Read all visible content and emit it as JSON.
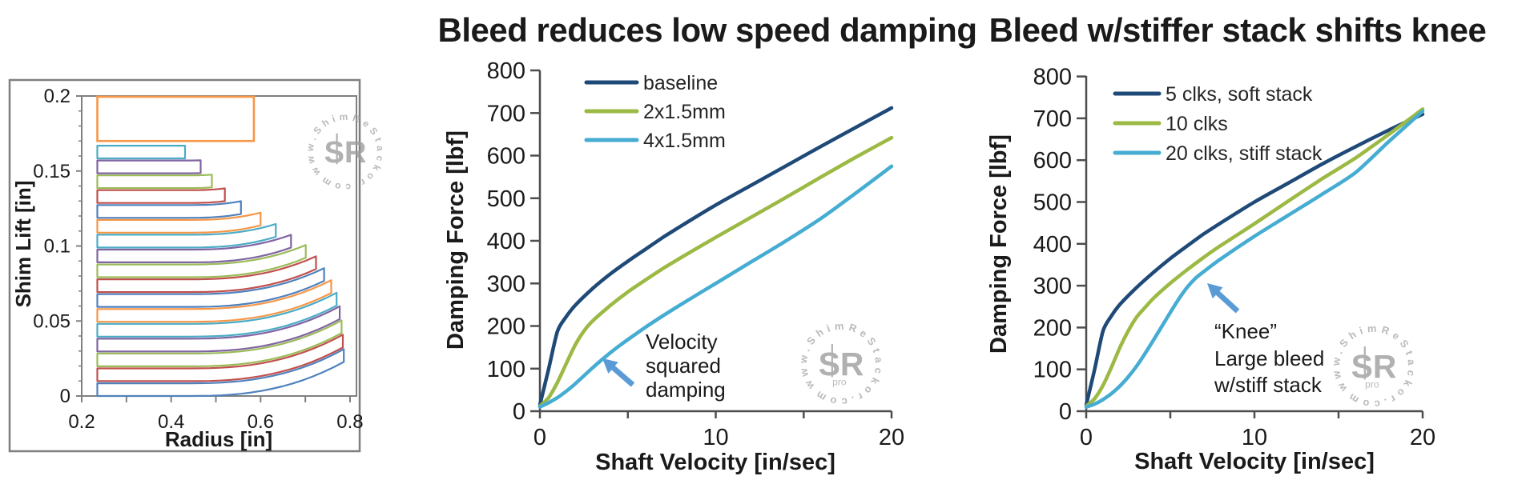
{
  "page": {
    "background": "#ffffff"
  },
  "colors": {
    "axis_dark": "#4d4d4d",
    "axis_gray": "#808080",
    "frame_gray": "#7f7f7f",
    "text": "#1a1a1a",
    "arrow_blue": "#5b9bd5",
    "watermark_gray": "#a9a9a9"
  },
  "watermark": {
    "circle_text": "www.ShimReStackor.com",
    "monogram": "SR",
    "sub_label": "pro"
  },
  "chart_data": [
    {
      "id": "shim-stack-profile",
      "type": "line",
      "subtype": "shim-stack-cross-section",
      "title": "",
      "xlabel": "Radius [in]",
      "ylabel": "Shim Lift [in]",
      "xlim": [
        0.2,
        0.814
      ],
      "ylim": [
        0,
        0.2
      ],
      "xticks": [
        0.2,
        0.3,
        0.4,
        0.5,
        0.6,
        0.7,
        0.8
      ],
      "xtick_labels": [
        "0.2",
        "",
        "0.4",
        "",
        "0.6",
        "",
        "0.8"
      ],
      "ytick_labels": [
        "0",
        "0.05",
        "0.1",
        "0.15",
        "0.2"
      ],
      "yticks": [
        0,
        0.05,
        0.1,
        0.15,
        0.2
      ],
      "ytick_minor_step": 0.01,
      "grid": false,
      "shims": {
        "clamp_inner_radius": 0.235,
        "thickness": 0.0085,
        "lift_step": 0.0099,
        "bend_start_radius": 0.44,
        "deflection_coeff": 0.19,
        "deflection_power": 2.5,
        "outer_radii": [
          0.786,
          0.784,
          0.781,
          0.777,
          0.77,
          0.758,
          0.742,
          0.724,
          0.701,
          0.668,
          0.634,
          0.6,
          0.556,
          0.52,
          0.491,
          0.466,
          0.431
        ],
        "color_cycle": [
          "#4f81bd",
          "#c0504d",
          "#9bbb59",
          "#8064a2",
          "#4bacc6",
          "#f79646"
        ]
      },
      "clamp_plate": {
        "x0": 0.235,
        "x1": 0.585,
        "y0": 0.17,
        "y1": 0.1995,
        "color": "#f79646"
      }
    },
    {
      "id": "bleed-low-speed-damping",
      "type": "line",
      "title": "Bleed reduces low speed damping",
      "xlabel": "Shaft Velocity [in/sec]",
      "ylabel": "Damping Force [lbf]",
      "xlim": [
        0,
        20
      ],
      "ylim": [
        0,
        800
      ],
      "xticks": [
        0,
        5,
        10,
        15,
        20
      ],
      "xtick_labels": [
        "0",
        "",
        "10",
        "",
        "20"
      ],
      "yticks": [
        0,
        100,
        200,
        300,
        400,
        500,
        600,
        700,
        800
      ],
      "ytick_labels": [
        "0",
        "100",
        "200",
        "300",
        "400",
        "500",
        "600",
        "700",
        "800"
      ],
      "grid": false,
      "legend_position": "top-left-inside",
      "series": [
        {
          "name": "baseline",
          "color": "#1f4a78",
          "points": [
            [
              0,
              15
            ],
            [
              0.5,
              100
            ],
            [
              1,
              188
            ],
            [
              1.5,
              222
            ],
            [
              2,
              248
            ],
            [
              3,
              288
            ],
            [
              4,
              322
            ],
            [
              5,
              352
            ],
            [
              6,
              380
            ],
            [
              7,
              408
            ],
            [
              8,
              434
            ],
            [
              10,
              484
            ],
            [
              12,
              530
            ],
            [
              14,
              576
            ],
            [
              16,
              622
            ],
            [
              18,
              667
            ],
            [
              20,
              712
            ]
          ]
        },
        {
          "name": "2x1.5mm",
          "color": "#9cb944",
          "points": [
            [
              0,
              12
            ],
            [
              0.5,
              32
            ],
            [
              1,
              68
            ],
            [
              1.5,
              112
            ],
            [
              2,
              155
            ],
            [
              2.5,
              188
            ],
            [
              3,
              212
            ],
            [
              4,
              248
            ],
            [
              5,
              280
            ],
            [
              6,
              308
            ],
            [
              7,
              335
            ],
            [
              8,
              360
            ],
            [
              10,
              408
            ],
            [
              12,
              455
            ],
            [
              14,
              502
            ],
            [
              16,
              550
            ],
            [
              18,
              597
            ],
            [
              20,
              642
            ]
          ]
        },
        {
          "name": "4x1.5mm",
          "color": "#45acd2",
          "points": [
            [
              0,
              10
            ],
            [
              0.5,
              20
            ],
            [
              1,
              32
            ],
            [
              1.5,
              47
            ],
            [
              2,
              64
            ],
            [
              2.5,
              83
            ],
            [
              3,
              102
            ],
            [
              3.5,
              120
            ],
            [
              4,
              137
            ],
            [
              4.5,
              153
            ],
            [
              5,
              168
            ],
            [
              6,
              197
            ],
            [
              7,
              224
            ],
            [
              8,
              250
            ],
            [
              10,
              300
            ],
            [
              12,
              350
            ],
            [
              14,
              400
            ],
            [
              16,
              453
            ],
            [
              18,
              513
            ],
            [
              20,
              575
            ]
          ]
        }
      ],
      "annotation": {
        "lines": [
          "Velocity",
          "squared",
          "damping"
        ]
      }
    },
    {
      "id": "bleed-stiffer-stack-knee",
      "type": "line",
      "title": "Bleed w/stiffer stack shifts knee",
      "xlabel": "Shaft Velocity [in/sec]",
      "ylabel": "Damping Force [lbf]",
      "xlim": [
        0,
        20
      ],
      "ylim": [
        0,
        800
      ],
      "xticks": [
        0,
        5,
        10,
        15,
        20
      ],
      "xtick_labels": [
        "0",
        "",
        "10",
        "",
        "20"
      ],
      "yticks": [
        0,
        100,
        200,
        300,
        400,
        500,
        600,
        700,
        800
      ],
      "ytick_labels": [
        "0",
        "100",
        "200",
        "300",
        "400",
        "500",
        "600",
        "700",
        "800"
      ],
      "grid": false,
      "legend_position": "top-left-inside",
      "series": [
        {
          "name": "5 clks, soft stack",
          "color": "#1f4a78",
          "points": [
            [
              0,
              15
            ],
            [
              0.5,
              100
            ],
            [
              1,
              192
            ],
            [
              1.5,
              228
            ],
            [
              2,
              255
            ],
            [
              3,
              296
            ],
            [
              4,
              332
            ],
            [
              5,
              365
            ],
            [
              6,
              395
            ],
            [
              7,
              424
            ],
            [
              8,
              450
            ],
            [
              10,
              500
            ],
            [
              12,
              545
            ],
            [
              14,
              590
            ],
            [
              16,
              632
            ],
            [
              18,
              672
            ],
            [
              20,
              710
            ]
          ]
        },
        {
          "name": "10 clks",
          "color": "#9cb944",
          "points": [
            [
              0,
              12
            ],
            [
              0.5,
              30
            ],
            [
              1,
              62
            ],
            [
              1.5,
              105
            ],
            [
              2,
              152
            ],
            [
              2.5,
              192
            ],
            [
              3,
              225
            ],
            [
              3.5,
              248
            ],
            [
              4,
              270
            ],
            [
              5,
              306
            ],
            [
              6,
              338
            ],
            [
              7,
              368
            ],
            [
              8,
              396
            ],
            [
              10,
              448
            ],
            [
              12,
              502
            ],
            [
              14,
              555
            ],
            [
              16,
              605
            ],
            [
              18,
              662
            ],
            [
              20,
              722
            ]
          ]
        },
        {
          "name": "20 clks, stiff stack",
          "color": "#45acd2",
          "points": [
            [
              0,
              10
            ],
            [
              0.5,
              17
            ],
            [
              1,
              28
            ],
            [
              1.5,
              42
            ],
            [
              2,
              60
            ],
            [
              2.5,
              82
            ],
            [
              3,
              108
            ],
            [
              3.5,
              138
            ],
            [
              4,
              170
            ],
            [
              4.5,
              203
            ],
            [
              5,
              236
            ],
            [
              5.5,
              268
            ],
            [
              6,
              296
            ],
            [
              6.5,
              318
            ],
            [
              7,
              334
            ],
            [
              8,
              364
            ],
            [
              10,
              418
            ],
            [
              12,
              468
            ],
            [
              14,
              518
            ],
            [
              16,
              570
            ],
            [
              18,
              645
            ],
            [
              20,
              717
            ]
          ]
        }
      ],
      "annotation": {
        "lines": [
          "“Knee”",
          "Large bleed",
          "w/stiff stack"
        ]
      }
    }
  ]
}
